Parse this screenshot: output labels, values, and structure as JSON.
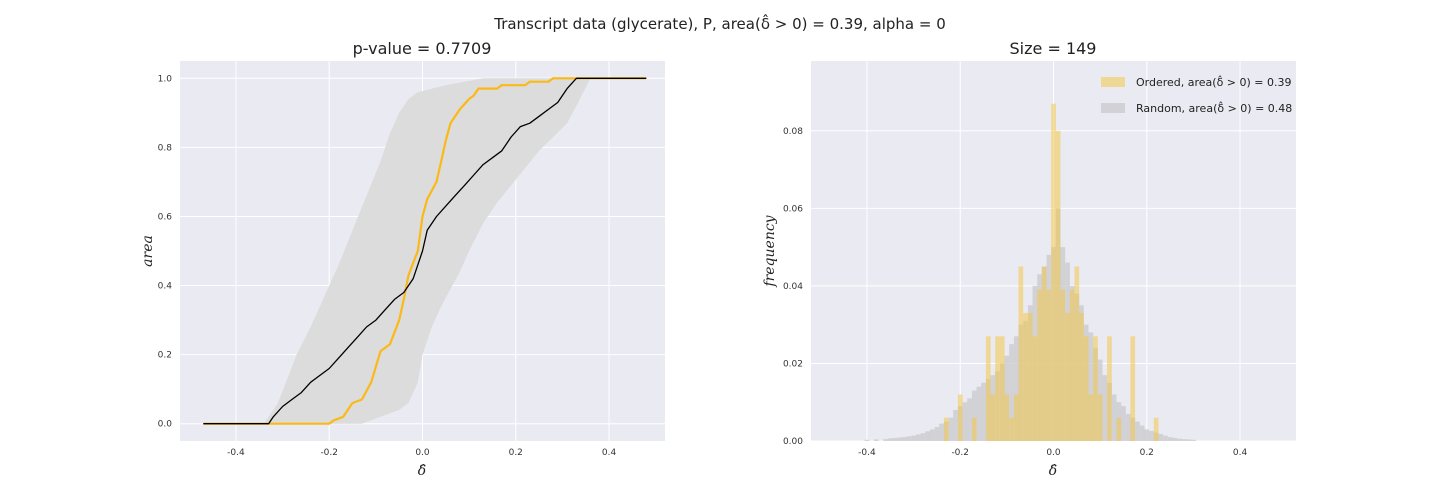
{
  "figure": {
    "suptitle": "Transcript data (glycerate), P, area(δ̂ > 0) = 0.39, alpha = 0"
  },
  "chart_data": [
    {
      "type": "line",
      "title": "p-value = 0.7709",
      "xlabel": "δ̂",
      "ylabel": "area",
      "xlim": [
        -0.52,
        0.52
      ],
      "ylim": [
        -0.05,
        1.05
      ],
      "xticks": [
        "-0.4",
        "-0.2",
        "0.0",
        "0.2",
        "0.4"
      ],
      "xtick_values": [
        -0.4,
        -0.2,
        0.0,
        0.2,
        0.4
      ],
      "yticks": [
        "0.0",
        "0.2",
        "0.4",
        "0.6",
        "0.8",
        "1.0"
      ],
      "ytick_values": [
        0.0,
        0.2,
        0.4,
        0.6,
        0.8,
        1.0
      ],
      "grid": true,
      "colors": {
        "background": "#eaeaf2",
        "ordered": "#fbb917",
        "random": "#000000",
        "band": "#dcdcdc"
      },
      "series": [
        {
          "role": "ordered",
          "points": [
            [
              -0.47,
              0
            ],
            [
              -0.2,
              0
            ],
            [
              -0.19,
              0.01
            ],
            [
              -0.17,
              0.02
            ],
            [
              -0.15,
              0.06
            ],
            [
              -0.13,
              0.07
            ],
            [
              -0.11,
              0.12
            ],
            [
              -0.09,
              0.21
            ],
            [
              -0.07,
              0.23
            ],
            [
              -0.05,
              0.3
            ],
            [
              -0.04,
              0.36
            ],
            [
              -0.03,
              0.43
            ],
            [
              -0.01,
              0.5
            ],
            [
              0.0,
              0.6
            ],
            [
              0.01,
              0.65
            ],
            [
              0.03,
              0.7
            ],
            [
              0.04,
              0.76
            ],
            [
              0.05,
              0.82
            ],
            [
              0.06,
              0.87
            ],
            [
              0.08,
              0.91
            ],
            [
              0.1,
              0.94
            ],
            [
              0.11,
              0.95
            ],
            [
              0.12,
              0.97
            ],
            [
              0.16,
              0.97
            ],
            [
              0.17,
              0.98
            ],
            [
              0.22,
              0.98
            ],
            [
              0.23,
              0.99
            ],
            [
              0.27,
              0.99
            ],
            [
              0.28,
              1.0
            ],
            [
              0.48,
              1.0
            ]
          ]
        },
        {
          "role": "random",
          "points": [
            [
              -0.47,
              0
            ],
            [
              -0.33,
              0
            ],
            [
              -0.32,
              0.02
            ],
            [
              -0.3,
              0.05
            ],
            [
              -0.28,
              0.07
            ],
            [
              -0.26,
              0.09
            ],
            [
              -0.24,
              0.12
            ],
            [
              -0.22,
              0.14
            ],
            [
              -0.2,
              0.16
            ],
            [
              -0.18,
              0.19
            ],
            [
              -0.16,
              0.22
            ],
            [
              -0.14,
              0.25
            ],
            [
              -0.12,
              0.28
            ],
            [
              -0.1,
              0.3
            ],
            [
              -0.08,
              0.33
            ],
            [
              -0.06,
              0.36
            ],
            [
              -0.04,
              0.38
            ],
            [
              -0.02,
              0.42
            ],
            [
              0.0,
              0.5
            ],
            [
              0.01,
              0.56
            ],
            [
              0.03,
              0.6
            ],
            [
              0.05,
              0.63
            ],
            [
              0.07,
              0.66
            ],
            [
              0.09,
              0.69
            ],
            [
              0.11,
              0.72
            ],
            [
              0.13,
              0.75
            ],
            [
              0.15,
              0.77
            ],
            [
              0.17,
              0.79
            ],
            [
              0.19,
              0.83
            ],
            [
              0.21,
              0.86
            ],
            [
              0.23,
              0.87
            ],
            [
              0.25,
              0.89
            ],
            [
              0.27,
              0.91
            ],
            [
              0.29,
              0.93
            ],
            [
              0.31,
              0.97
            ],
            [
              0.33,
              1.0
            ],
            [
              0.48,
              1.0
            ]
          ]
        }
      ],
      "band": {
        "lower": [
          [
            -0.47,
            0
          ],
          [
            -0.13,
            0
          ],
          [
            -0.11,
            0.01
          ],
          [
            -0.09,
            0.02
          ],
          [
            -0.05,
            0.04
          ],
          [
            -0.03,
            0.06
          ],
          [
            -0.01,
            0.12
          ],
          [
            0.0,
            0.2
          ],
          [
            0.02,
            0.28
          ],
          [
            0.04,
            0.34
          ],
          [
            0.06,
            0.39
          ],
          [
            0.08,
            0.44
          ],
          [
            0.1,
            0.5
          ],
          [
            0.13,
            0.58
          ],
          [
            0.16,
            0.64
          ],
          [
            0.19,
            0.69
          ],
          [
            0.22,
            0.74
          ],
          [
            0.25,
            0.79
          ],
          [
            0.28,
            0.83
          ],
          [
            0.31,
            0.87
          ],
          [
            0.33,
            0.92
          ],
          [
            0.36,
            1.0
          ],
          [
            0.48,
            1.0
          ]
        ],
        "upper": [
          [
            -0.47,
            0
          ],
          [
            -0.34,
            0
          ],
          [
            -0.31,
            0.06
          ],
          [
            -0.29,
            0.13
          ],
          [
            -0.27,
            0.2
          ],
          [
            -0.24,
            0.28
          ],
          [
            -0.21,
            0.37
          ],
          [
            -0.18,
            0.46
          ],
          [
            -0.15,
            0.56
          ],
          [
            -0.12,
            0.66
          ],
          [
            -0.09,
            0.76
          ],
          [
            -0.07,
            0.84
          ],
          [
            -0.05,
            0.9
          ],
          [
            -0.03,
            0.94
          ],
          [
            -0.01,
            0.96
          ],
          [
            0.02,
            0.97
          ],
          [
            0.05,
            0.98
          ],
          [
            0.09,
            0.99
          ],
          [
            0.13,
            1.0
          ],
          [
            0.48,
            1.0
          ]
        ]
      }
    },
    {
      "type": "bar",
      "title": "Size = 149",
      "xlabel": "δ̂",
      "ylabel": "frequency",
      "xlim": [
        -0.52,
        0.52
      ],
      "ylim": [
        0,
        0.098
      ],
      "xticks": [
        "-0.4",
        "-0.2",
        "0.0",
        "0.2",
        "0.4"
      ],
      "xtick_values": [
        -0.4,
        -0.2,
        0.0,
        0.2,
        0.4
      ],
      "yticks": [
        "0.00",
        "0.02",
        "0.04",
        "0.06",
        "0.08"
      ],
      "ytick_values": [
        0.0,
        0.02,
        0.04,
        0.06,
        0.08
      ],
      "grid": true,
      "legend_position": "top-right",
      "bin_width": 0.01,
      "colors": {
        "background": "#eaeaf2",
        "ordered": "#f2c84b",
        "random": "#c8c8cc"
      },
      "series": [
        {
          "name": "Ordered, area(δ̂ > 0) = 0.39",
          "role": "ordered",
          "bins": [
            [
              -0.23,
              0.006
            ],
            [
              -0.2,
              0.012
            ],
            [
              -0.17,
              0.006
            ],
            [
              -0.14,
              0.027
            ],
            [
              -0.13,
              0.012
            ],
            [
              -0.12,
              0.027
            ],
            [
              -0.11,
              0.027
            ],
            [
              -0.1,
              0.012
            ],
            [
              -0.09,
              0.006
            ],
            [
              -0.08,
              0.012
            ],
            [
              -0.07,
              0.045
            ],
            [
              -0.06,
              0.033
            ],
            [
              -0.05,
              0.033
            ],
            [
              -0.04,
              0.027
            ],
            [
              -0.03,
              0.039
            ],
            [
              -0.02,
              0.045
            ],
            [
              -0.01,
              0.039
            ],
            [
              0.0,
              0.087
            ],
            [
              0.01,
              0.08
            ],
            [
              0.02,
              0.039
            ],
            [
              0.03,
              0.033
            ],
            [
              0.04,
              0.039
            ],
            [
              0.05,
              0.045
            ],
            [
              0.06,
              0.033
            ],
            [
              0.07,
              0.027
            ],
            [
              0.08,
              0.012
            ],
            [
              0.09,
              0.027
            ],
            [
              0.1,
              0.012
            ],
            [
              0.12,
              0.027
            ],
            [
              0.14,
              0.006
            ],
            [
              0.17,
              0.027
            ],
            [
              0.22,
              0.006
            ]
          ]
        },
        {
          "name": "Random, area(δ̂ > 0) = 0.48",
          "role": "random",
          "bins": [
            [
              -0.4,
              0.0003
            ],
            [
              -0.38,
              0.0004
            ],
            [
              -0.36,
              0.0005
            ],
            [
              -0.35,
              0.0007
            ],
            [
              -0.34,
              0.0008
            ],
            [
              -0.33,
              0.0009
            ],
            [
              -0.32,
              0.001
            ],
            [
              -0.31,
              0.0012
            ],
            [
              -0.3,
              0.0014
            ],
            [
              -0.29,
              0.0017
            ],
            [
              -0.28,
              0.002
            ],
            [
              -0.27,
              0.0025
            ],
            [
              -0.26,
              0.003
            ],
            [
              -0.25,
              0.0036
            ],
            [
              -0.24,
              0.0045
            ],
            [
              -0.23,
              0.005
            ],
            [
              -0.22,
              0.006
            ],
            [
              -0.21,
              0.008
            ],
            [
              -0.2,
              0.009
            ],
            [
              -0.19,
              0.01
            ],
            [
              -0.18,
              0.011
            ],
            [
              -0.17,
              0.013
            ],
            [
              -0.16,
              0.014
            ],
            [
              -0.15,
              0.015
            ],
            [
              -0.14,
              0.016
            ],
            [
              -0.13,
              0.017
            ],
            [
              -0.12,
              0.018
            ],
            [
              -0.11,
              0.02
            ],
            [
              -0.1,
              0.022
            ],
            [
              -0.09,
              0.025
            ],
            [
              -0.08,
              0.027
            ],
            [
              -0.07,
              0.03
            ],
            [
              -0.06,
              0.031
            ],
            [
              -0.05,
              0.035
            ],
            [
              -0.04,
              0.04
            ],
            [
              -0.03,
              0.043
            ],
            [
              -0.02,
              0.045
            ],
            [
              -0.01,
              0.048
            ],
            [
              0.0,
              0.05
            ],
            [
              0.01,
              0.06
            ],
            [
              0.02,
              0.05
            ],
            [
              0.03,
              0.046
            ],
            [
              0.04,
              0.04
            ],
            [
              0.05,
              0.038
            ],
            [
              0.06,
              0.035
            ],
            [
              0.07,
              0.03
            ],
            [
              0.08,
              0.028
            ],
            [
              0.09,
              0.024
            ],
            [
              0.1,
              0.021
            ],
            [
              0.11,
              0.017
            ],
            [
              0.12,
              0.015
            ],
            [
              0.13,
              0.012
            ],
            [
              0.14,
              0.01
            ],
            [
              0.15,
              0.009
            ],
            [
              0.16,
              0.007
            ],
            [
              0.17,
              0.006
            ],
            [
              0.18,
              0.005
            ],
            [
              0.19,
              0.004
            ],
            [
              0.2,
              0.003
            ],
            [
              0.21,
              0.0026
            ],
            [
              0.22,
              0.0022
            ],
            [
              0.23,
              0.0018
            ],
            [
              0.24,
              0.0014
            ],
            [
              0.25,
              0.001
            ],
            [
              0.26,
              0.0008
            ],
            [
              0.27,
              0.0006
            ],
            [
              0.28,
              0.0005
            ],
            [
              0.29,
              0.0004
            ],
            [
              0.3,
              0.0003
            ]
          ]
        }
      ]
    }
  ]
}
